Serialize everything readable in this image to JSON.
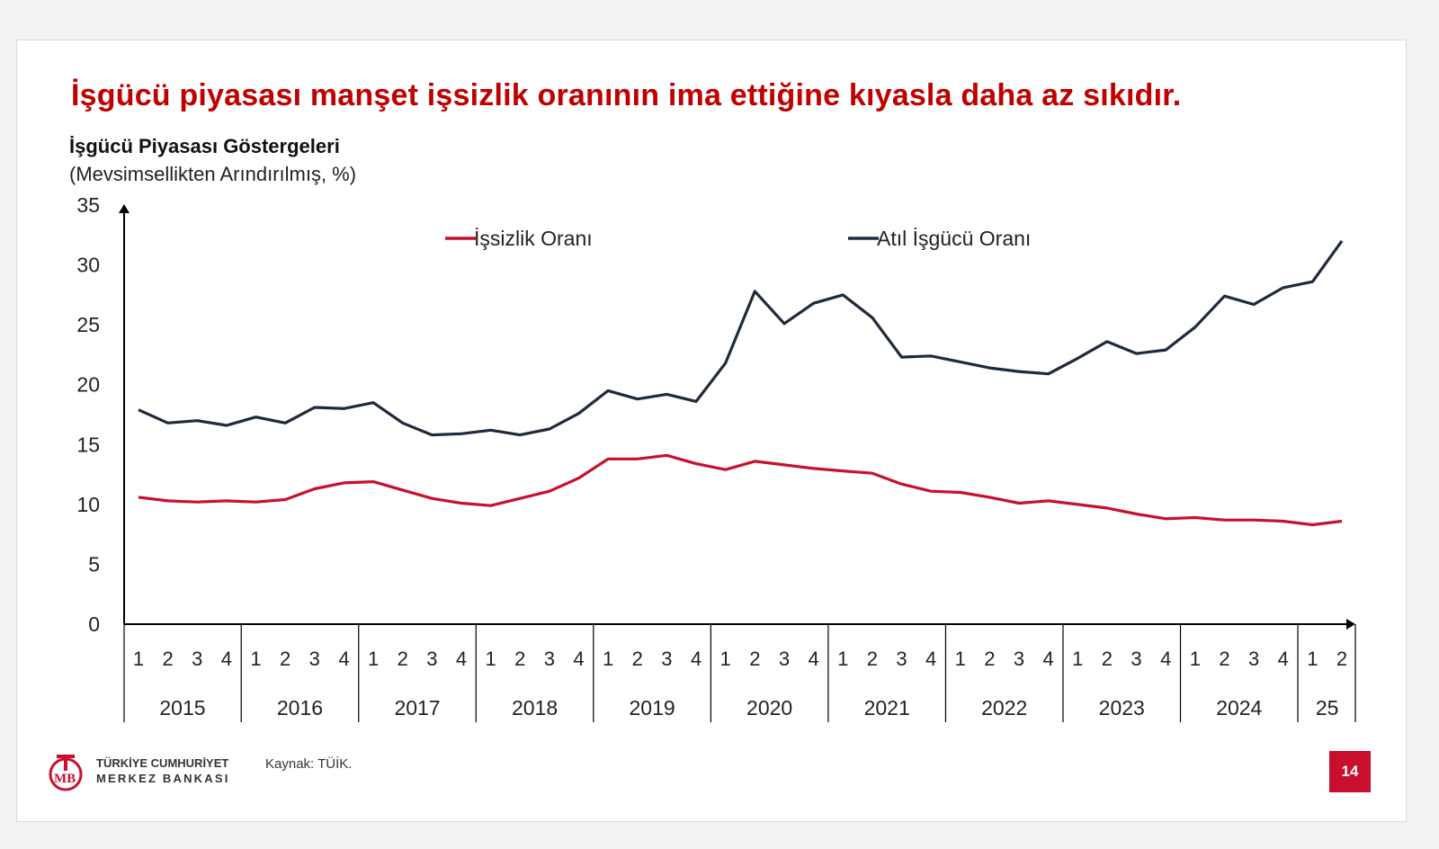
{
  "slide": {
    "headline": "İşgücü piyasası manşet işsizlik oranının ima ettiğine kıyasla daha az sıkıdır.",
    "source": "Kaynak: TÜİK.",
    "page_number": "14",
    "logo_line1": "TÜRKİYE CUMHURİYET",
    "logo_line2": "MERKEZ BANKASI",
    "accent_color": "#c00000"
  },
  "chart_data": {
    "type": "line",
    "title": "İşgücü Piyasası Göstergeleri",
    "subtitle": "(Mevsimsellikten Arındırılmış, %)",
    "ylim": [
      0,
      35
    ],
    "yticks": [
      0,
      5,
      10,
      15,
      20,
      25,
      30,
      35
    ],
    "grid": false,
    "legend_position": "top",
    "quarter_labels": [
      "1",
      "2",
      "3",
      "4",
      "1",
      "2",
      "3",
      "4",
      "1",
      "2",
      "3",
      "4",
      "1",
      "2",
      "3",
      "4",
      "1",
      "2",
      "3",
      "4",
      "1",
      "2",
      "3",
      "4",
      "1",
      "2",
      "3",
      "4",
      "1",
      "2",
      "3",
      "4",
      "1",
      "2",
      "3",
      "4",
      "1",
      "2",
      "3",
      "4",
      "1",
      "2"
    ],
    "year_groups": [
      {
        "label": "2015",
        "quarters": 4
      },
      {
        "label": "2016",
        "quarters": 4
      },
      {
        "label": "2017",
        "quarters": 4
      },
      {
        "label": "2018",
        "quarters": 4
      },
      {
        "label": "2019",
        "quarters": 4
      },
      {
        "label": "2020",
        "quarters": 4
      },
      {
        "label": "2021",
        "quarters": 4
      },
      {
        "label": "2022",
        "quarters": 4
      },
      {
        "label": "2023",
        "quarters": 4
      },
      {
        "label": "2024",
        "quarters": 4
      },
      {
        "label": "25",
        "quarters": 2
      }
    ],
    "series": [
      {
        "name": "İşsizlik Oranı",
        "color": "#c8102e",
        "values": [
          10.6,
          10.3,
          10.2,
          10.3,
          10.2,
          10.4,
          11.3,
          11.8,
          11.9,
          11.2,
          10.5,
          10.1,
          9.9,
          10.5,
          11.1,
          12.2,
          13.8,
          13.8,
          14.1,
          13.4,
          12.9,
          13.6,
          13.3,
          13.0,
          12.8,
          12.6,
          11.7,
          11.1,
          11.0,
          10.6,
          10.1,
          10.3,
          10.0,
          9.7,
          9.2,
          8.8,
          8.9,
          8.7,
          8.7,
          8.6,
          8.3,
          8.6
        ]
      },
      {
        "name": "Atıl İşgücü Oranı",
        "color": "#1f2a3a",
        "values": [
          17.9,
          16.8,
          17.0,
          16.6,
          17.3,
          16.8,
          18.1,
          18.0,
          18.5,
          16.8,
          15.8,
          15.9,
          16.2,
          15.8,
          16.3,
          17.6,
          19.5,
          18.8,
          19.2,
          18.6,
          21.8,
          27.8,
          25.1,
          26.8,
          27.5,
          25.6,
          22.3,
          22.4,
          21.9,
          21.4,
          21.1,
          20.9,
          22.2,
          23.6,
          22.6,
          22.9,
          24.8,
          27.4,
          26.7,
          28.1,
          28.6,
          32.0
        ]
      }
    ]
  }
}
